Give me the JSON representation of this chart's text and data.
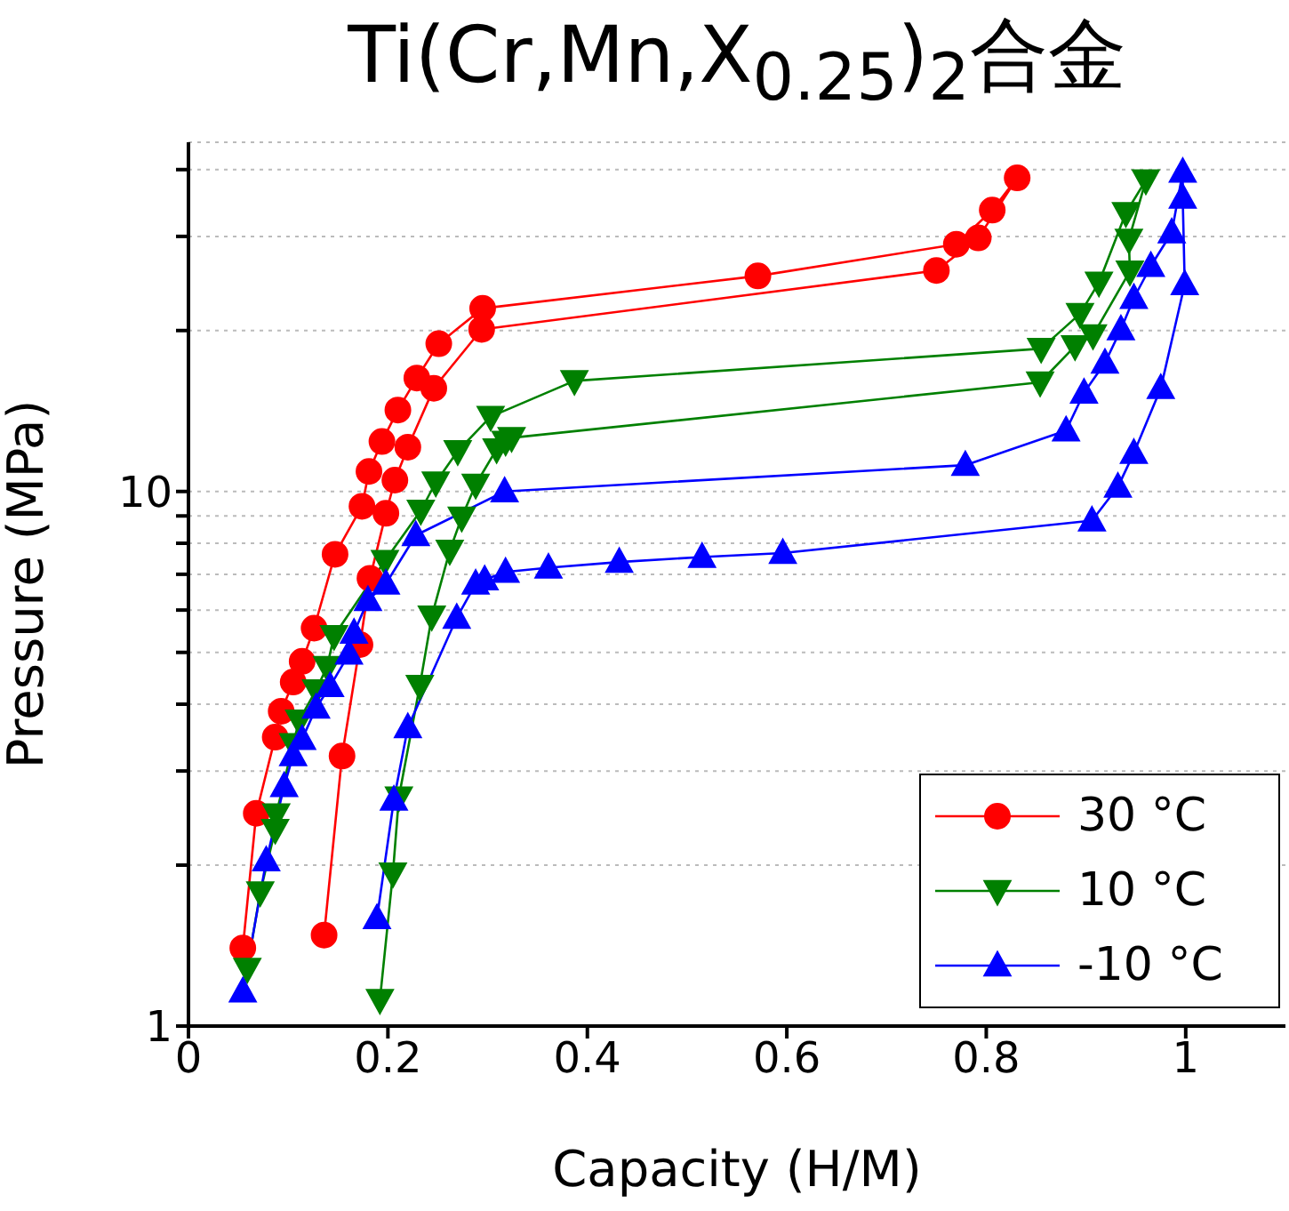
{
  "chart_data": {
    "type": "line",
    "title": "Ti(Cr,Mn,X$_{0.25}$)$_{2}$合金",
    "xlabel": "Capacity (H/M)",
    "ylabel": "Pressure (MPa)",
    "xlim": [
      0,
      1.1
    ],
    "xticks": [
      0,
      0.2,
      0.4,
      0.6,
      0.8,
      1
    ],
    "ylim": [
      1,
      45
    ],
    "log": "y",
    "yticks": [
      1,
      {
        "value": 2,
        "label": null
      },
      {
        "value": 3,
        "label": null
      },
      {
        "value": 4,
        "label": null
      },
      {
        "value": 5,
        "label": null
      },
      {
        "value": 6,
        "label": null
      },
      {
        "value": 7,
        "label": null
      },
      {
        "value": 8,
        "label": null
      },
      {
        "value": 9,
        "label": null
      },
      10,
      {
        "value": 20,
        "label": null
      },
      {
        "value": 30,
        "label": null
      },
      {
        "value": 40,
        "label": null
      }
    ],
    "grid": "y",
    "legend": "bottom right",
    "series": [
      {
        "name": "30 °C",
        "color": "#ff0000",
        "marker": "circle",
        "x": [
          0.0545,
          0.068,
          0.087,
          0.093,
          0.105,
          0.114,
          0.126,
          0.147,
          0.174,
          0.181,
          0.194,
          0.21,
          0.229,
          0.251,
          0.295,
          0.571,
          0.77,
          0.806,
          0.831,
          0.792,
          0.75,
          0.294,
          0.246,
          0.22,
          0.207,
          0.198,
          0.182,
          0.172,
          0.154,
          0.136
        ],
        "values": [
          1.4,
          2.5,
          3.47,
          3.88,
          4.4,
          4.81,
          5.55,
          7.63,
          9.38,
          10.9,
          12.4,
          14.2,
          16.3,
          18.9,
          22,
          25.3,
          29,
          33.6,
          38.6,
          29.8,
          25.9,
          20.1,
          15.6,
          12.1,
          10.5,
          9.1,
          6.88,
          5.17,
          3.2,
          1.48
        ]
      },
      {
        "name": "10 °C",
        "color": "#008000",
        "marker": "triangle-down",
        "x": [
          0.059,
          0.072,
          0.087,
          0.088,
          0.105,
          0.111,
          0.128,
          0.139,
          0.146,
          0.197,
          0.233,
          0.248,
          0.27,
          0.303,
          0.387,
          0.855,
          0.894,
          0.913,
          0.94,
          0.96,
          0.943,
          0.944,
          0.907,
          0.889,
          0.854,
          0.324,
          0.318,
          0.309,
          0.288,
          0.274,
          0.262,
          0.244,
          0.232,
          0.211,
          0.205,
          0.192
        ],
        "values": [
          1.28,
          1.78,
          2.33,
          2.49,
          3.37,
          3.73,
          4.25,
          4.7,
          5.37,
          7.42,
          9.21,
          10.4,
          11.9,
          13.8,
          16.1,
          18.5,
          21.5,
          24.6,
          33.2,
          38.2,
          29.6,
          25.8,
          19.6,
          18.7,
          16,
          12.6,
          12.4,
          12,
          10.3,
          8.94,
          7.75,
          5.84,
          4.33,
          2.68,
          1.93,
          1.12
        ]
      },
      {
        "name": "-10 °C",
        "color": "#0000ff",
        "marker": "triangle",
        "x": [
          0.0545,
          0.078,
          0.096,
          0.105,
          0.114,
          0.128,
          0.142,
          0.161,
          0.166,
          0.18,
          0.198,
          0.228,
          0.317,
          0.779,
          0.88,
          0.898,
          0.919,
          0.935,
          0.948,
          0.965,
          0.986,
          0.997,
          0.997,
          0.999,
          0.975,
          0.948,
          0.932,
          0.906,
          0.596,
          0.515,
          0.432,
          0.361,
          0.318,
          0.297,
          0.288,
          0.269,
          0.22,
          0.206,
          0.189
        ],
        "values": [
          1.16,
          2.04,
          2.81,
          3.21,
          3.44,
          3.94,
          4.32,
          4.97,
          5.44,
          6.26,
          6.72,
          8.28,
          10,
          11.2,
          13,
          15.3,
          17.4,
          20.1,
          23,
          26.4,
          30.5,
          39.6,
          35.4,
          24.4,
          15.6,
          11.8,
          10.2,
          8.82,
          7.67,
          7.54,
          7.38,
          7.2,
          7.07,
          6.84,
          6.72,
          5.8,
          3.62,
          2.65,
          1.59
        ]
      }
    ]
  }
}
